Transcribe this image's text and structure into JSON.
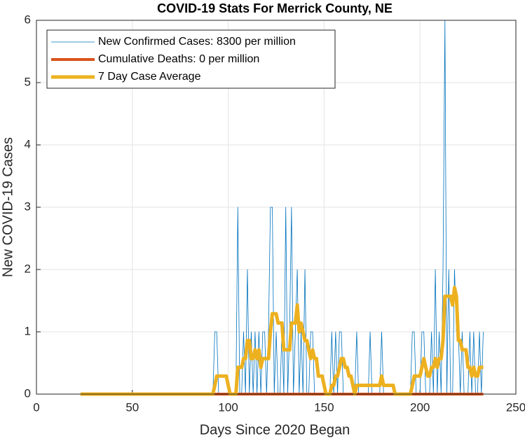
{
  "chart_data": {
    "type": "line",
    "title": "COVID-19 Stats For Merrick County, NE",
    "xlabel": "Days Since 2020 Began",
    "ylabel": "New COVID-19 Cases",
    "xlim": [
      0,
      250
    ],
    "xticks": [
      0,
      50,
      100,
      150,
      200,
      250
    ],
    "ylim": [
      0,
      6
    ],
    "yticks": [
      0,
      1,
      2,
      3,
      4,
      5,
      6
    ],
    "grid": true,
    "legend": "upper-left",
    "x": [
      23,
      24,
      25,
      26,
      27,
      28,
      29,
      30,
      31,
      32,
      33,
      34,
      35,
      36,
      37,
      38,
      39,
      40,
      41,
      42,
      43,
      44,
      45,
      46,
      47,
      48,
      49,
      50,
      51,
      52,
      53,
      54,
      55,
      56,
      57,
      58,
      59,
      60,
      61,
      62,
      63,
      64,
      65,
      66,
      67,
      68,
      69,
      70,
      71,
      72,
      73,
      74,
      75,
      76,
      77,
      78,
      79,
      80,
      81,
      82,
      83,
      84,
      85,
      86,
      87,
      88,
      89,
      90,
      91,
      92,
      93,
      94,
      95,
      96,
      97,
      98,
      99,
      100,
      101,
      102,
      103,
      104,
      105,
      106,
      107,
      108,
      109,
      110,
      111,
      112,
      113,
      114,
      115,
      116,
      117,
      118,
      119,
      120,
      121,
      122,
      123,
      124,
      125,
      126,
      127,
      128,
      129,
      130,
      131,
      132,
      133,
      134,
      135,
      136,
      137,
      138,
      139,
      140,
      141,
      142,
      143,
      144,
      145,
      146,
      147,
      148,
      149,
      150,
      151,
      152,
      153,
      154,
      155,
      156,
      157,
      158,
      159,
      160,
      161,
      162,
      163,
      164,
      165,
      166,
      167,
      168,
      169,
      170,
      171,
      172,
      173,
      174,
      175,
      176,
      177,
      178,
      179,
      180,
      181,
      182,
      183,
      184,
      185,
      186,
      187,
      188,
      189,
      190,
      191,
      192,
      193,
      194,
      195,
      196,
      197,
      198,
      199,
      200,
      201,
      202,
      203,
      204,
      205,
      206,
      207,
      208,
      209,
      210,
      211,
      212,
      213,
      214,
      215,
      216,
      217,
      218,
      219,
      220,
      221,
      222,
      223,
      224,
      225,
      226,
      227,
      228,
      229,
      230,
      231,
      232,
      233
    ],
    "series": [
      {
        "name": "New Confirmed Cases: 8300 per million",
        "color": "#0072BD",
        "width": 0.8,
        "values": [
          0,
          0,
          0,
          0,
          0,
          0,
          0,
          0,
          0,
          0,
          0,
          0,
          0,
          0,
          0,
          0,
          0,
          0,
          0,
          0,
          0,
          0,
          0,
          0,
          0,
          0,
          0,
          0,
          0,
          0,
          0,
          0,
          0,
          0,
          0,
          0,
          0,
          0,
          0,
          0,
          0,
          0,
          0,
          0,
          0,
          0,
          0,
          0,
          0,
          0,
          0,
          0,
          0,
          0,
          0,
          0,
          0,
          0,
          0,
          0,
          0,
          0,
          0,
          0,
          0,
          0,
          0,
          0,
          0,
          0,
          1,
          1,
          0,
          0,
          0,
          0,
          0,
          0,
          0,
          0,
          0,
          0,
          3,
          0,
          0,
          1,
          0,
          2,
          0,
          1,
          0,
          1,
          0,
          1,
          0,
          1,
          1,
          0,
          1,
          3,
          3,
          0,
          1,
          0,
          0,
          1,
          0,
          3,
          0,
          1,
          3,
          0,
          1,
          2,
          0,
          1,
          0,
          2,
          0,
          0,
          1,
          1,
          0,
          0,
          0,
          0,
          0,
          0,
          0,
          0,
          0,
          1,
          0,
          1,
          0,
          1,
          1,
          0,
          0,
          0,
          0,
          0,
          0,
          0,
          1,
          0,
          0,
          0,
          0,
          0,
          0,
          1,
          0,
          0,
          0,
          0,
          0,
          1,
          0,
          0,
          0,
          0,
          0,
          0,
          0,
          0,
          0,
          0,
          0,
          0,
          0,
          0,
          0,
          1,
          1,
          0,
          0,
          0,
          1,
          1,
          0,
          0,
          0,
          1,
          0,
          2,
          0,
          1,
          0,
          2,
          6,
          0,
          2,
          0,
          0,
          2,
          1,
          1,
          0,
          1,
          0,
          0,
          0,
          1,
          0,
          1,
          0,
          0,
          1,
          0,
          1
        ]
      },
      {
        "name": "Cumulative Deaths: 0 per million",
        "color": "#D95319",
        "width": 4,
        "values": [
          0,
          0,
          0,
          0,
          0,
          0,
          0,
          0,
          0,
          0,
          0,
          0,
          0,
          0,
          0,
          0,
          0,
          0,
          0,
          0,
          0,
          0,
          0,
          0,
          0,
          0,
          0,
          0,
          0,
          0,
          0,
          0,
          0,
          0,
          0,
          0,
          0,
          0,
          0,
          0,
          0,
          0,
          0,
          0,
          0,
          0,
          0,
          0,
          0,
          0,
          0,
          0,
          0,
          0,
          0,
          0,
          0,
          0,
          0,
          0,
          0,
          0,
          0,
          0,
          0,
          0,
          0,
          0,
          0,
          0,
          0,
          0,
          0,
          0,
          0,
          0,
          0,
          0,
          0,
          0,
          0,
          0,
          0,
          0,
          0,
          0,
          0,
          0,
          0,
          0,
          0,
          0,
          0,
          0,
          0,
          0,
          0,
          0,
          0,
          0,
          0,
          0,
          0,
          0,
          0,
          0,
          0,
          0,
          0,
          0,
          0,
          0,
          0,
          0,
          0,
          0,
          0,
          0,
          0,
          0,
          0,
          0,
          0,
          0,
          0,
          0,
          0,
          0,
          0,
          0,
          0,
          0,
          0,
          0,
          0,
          0,
          0,
          0,
          0,
          0,
          0,
          0,
          0,
          0,
          0,
          0,
          0,
          0,
          0,
          0,
          0,
          0,
          0,
          0,
          0,
          0,
          0,
          0,
          0,
          0,
          0,
          0,
          0,
          0,
          0,
          0,
          0,
          0,
          0,
          0,
          0,
          0,
          0,
          0,
          0,
          0,
          0,
          0,
          0,
          0,
          0,
          0,
          0,
          0,
          0,
          0,
          0,
          0,
          0,
          0,
          0,
          0,
          0,
          0,
          0,
          0,
          0,
          0,
          0,
          0,
          0,
          0,
          0,
          0,
          0,
          0,
          0,
          0,
          0,
          0,
          0
        ]
      },
      {
        "name": "7 Day Case Average",
        "color": "#EDB120",
        "width": 5,
        "values": [
          0,
          0,
          0,
          0,
          0,
          0,
          0,
          0,
          0,
          0,
          0,
          0,
          0,
          0,
          0,
          0,
          0,
          0,
          0,
          0,
          0,
          0,
          0,
          0,
          0,
          0,
          0,
          0,
          0,
          0,
          0,
          0,
          0,
          0,
          0,
          0,
          0,
          0,
          0,
          0,
          0,
          0,
          0,
          0,
          0,
          0,
          0,
          0,
          0,
          0,
          0,
          0,
          0,
          0,
          0,
          0,
          0,
          0,
          0,
          0,
          0,
          0,
          0,
          0,
          0,
          0,
          0,
          0,
          0,
          0,
          0.14,
          0.29,
          0.29,
          0.29,
          0.29,
          0.29,
          0.29,
          0.14,
          0,
          0,
          0,
          0,
          0.43,
          0.43,
          0.43,
          0.57,
          0.57,
          0.86,
          0.86,
          0.57,
          0.57,
          0.71,
          0.57,
          0.71,
          0.43,
          0.57,
          0.57,
          0.57,
          0.57,
          1,
          1.29,
          1.29,
          1.29,
          1.14,
          1.14,
          1.14,
          0.71,
          0.71,
          0.71,
          0.71,
          1.14,
          1.14,
          1.14,
          1.43,
          1,
          1.14,
          1,
          0.86,
          0.86,
          0.71,
          0.57,
          0.71,
          0.57,
          0.57,
          0.29,
          0.29,
          0.29,
          0.14,
          0,
          0,
          0,
          0.14,
          0.14,
          0.29,
          0.29,
          0.43,
          0.57,
          0.57,
          0.43,
          0.43,
          0.29,
          0.29,
          0.14,
          0,
          0.14,
          0.14,
          0.14,
          0.14,
          0.14,
          0.14,
          0.14,
          0.14,
          0.14,
          0.14,
          0.14,
          0.14,
          0.14,
          0.29,
          0.14,
          0.14,
          0.14,
          0.14,
          0.14,
          0.14,
          0,
          0,
          0,
          0,
          0,
          0,
          0,
          0,
          0,
          0.14,
          0.29,
          0.29,
          0.29,
          0.29,
          0.43,
          0.57,
          0.43,
          0.29,
          0.29,
          0.43,
          0.43,
          0.57,
          0.43,
          0.57,
          0.57,
          0.86,
          1.57,
          1.57,
          1.57,
          1.57,
          1.43,
          1.71,
          1.57,
          0.86,
          0.86,
          0.71,
          0.71,
          0.71,
          0.43,
          0.43,
          0.29,
          0.43,
          0.29,
          0.29,
          0.43,
          0.43,
          0.43
        ]
      }
    ]
  }
}
